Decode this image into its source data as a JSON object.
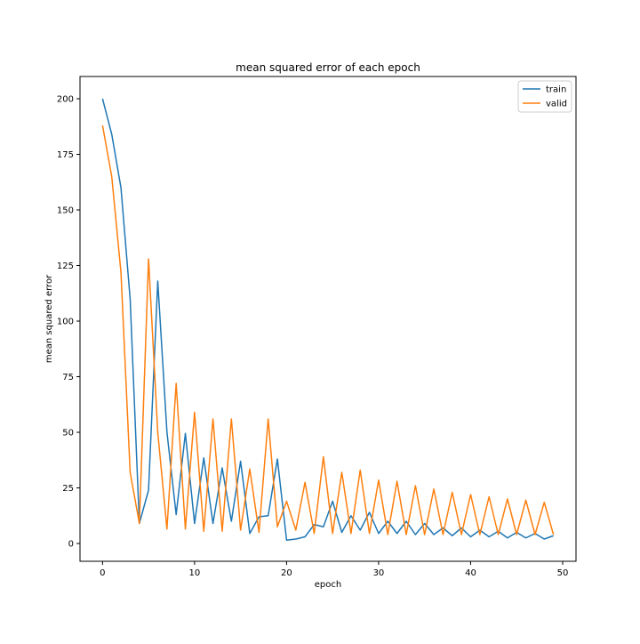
{
  "chart_data": {
    "type": "line",
    "title": "mean squared error of each epoch",
    "xlabel": "epoch",
    "ylabel": "mean squared error",
    "xlim": [
      -2.45,
      51.45
    ],
    "ylim": [
      -8,
      210
    ],
    "xticks": [
      0,
      10,
      20,
      30,
      40,
      50
    ],
    "xtick_labels": [
      "0",
      "10",
      "20",
      "30",
      "40",
      "50"
    ],
    "yticks": [
      0,
      25,
      50,
      75,
      100,
      125,
      150,
      175,
      200
    ],
    "ytick_labels": [
      "0",
      "25",
      "50",
      "75",
      "100",
      "125",
      "150",
      "175",
      "200"
    ],
    "grid": false,
    "legend_position": "top-right",
    "x": [
      0,
      1,
      2,
      3,
      4,
      5,
      6,
      7,
      8,
      9,
      10,
      11,
      12,
      13,
      14,
      15,
      16,
      17,
      18,
      19,
      20,
      21,
      22,
      23,
      24,
      25,
      26,
      27,
      28,
      29,
      30,
      31,
      32,
      33,
      34,
      35,
      36,
      37,
      38,
      39,
      40,
      41,
      42,
      43,
      44,
      45,
      46,
      47,
      48,
      49
    ],
    "series": [
      {
        "name": "train",
        "color": "#1f77b4",
        "values": [
          200,
          184,
          160,
          110,
          9,
          24,
          118,
          50,
          13,
          49.5,
          9,
          38.5,
          9,
          34,
          10,
          37,
          4.5,
          12,
          12.5,
          38,
          1.5,
          2,
          3,
          8.5,
          7.5,
          19,
          5,
          12.5,
          6,
          14,
          4.5,
          10,
          4.5,
          10,
          4,
          9,
          4,
          7,
          3.5,
          7,
          3,
          6,
          3,
          5.5,
          2.5,
          5,
          2.5,
          4.5,
          2,
          3.5
        ]
      },
      {
        "name": "valid",
        "color": "#ff7f0e",
        "values": [
          188,
          165,
          122,
          32,
          9,
          128,
          50,
          6.5,
          72,
          6.5,
          59,
          5.5,
          56,
          5.5,
          56,
          6,
          33.5,
          5,
          56,
          7.5,
          19,
          6,
          27.5,
          4.5,
          39,
          4.5,
          32,
          4.5,
          33,
          4.5,
          28.5,
          4,
          28,
          4,
          26,
          4,
          24.5,
          4,
          23,
          4,
          22,
          4,
          21,
          4,
          20,
          4,
          19.5,
          4,
          18.5,
          4
        ]
      }
    ]
  }
}
